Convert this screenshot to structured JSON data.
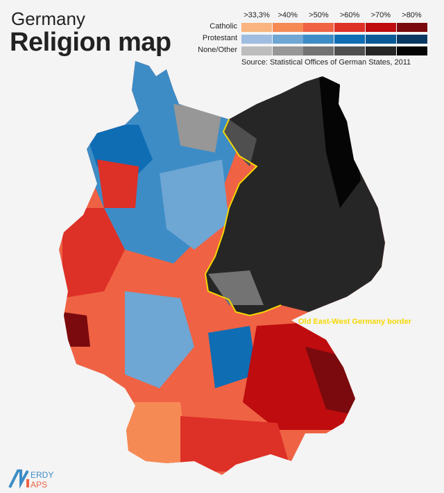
{
  "title": {
    "line1": "Germany",
    "line2": "Religion map"
  },
  "legend": {
    "thresholds": [
      ">33,3%",
      ">40%",
      ">50%",
      ">60%",
      ">70%",
      ">80%"
    ],
    "rows": [
      {
        "label": "Catholic",
        "colors": [
          "#f9b47f",
          "#f68a55",
          "#ef6244",
          "#dd3027",
          "#be0c0f",
          "#7a0a0d"
        ]
      },
      {
        "label": "Protestant",
        "colors": [
          "#9ebde0",
          "#6ea6d4",
          "#3d8cc6",
          "#0f6db4",
          "#0a5a98",
          "#0a3a64"
        ]
      },
      {
        "label": "None/Other",
        "colors": [
          "#bdbdbd",
          "#979797",
          "#737373",
          "#4f4f4f",
          "#262626",
          "#050505"
        ]
      }
    ],
    "source": "Source: Statistical Offices of German States, 2011"
  },
  "annotation": {
    "border_label": "Old East-West Germany border",
    "border_color": "#f5d800"
  },
  "logo": {
    "text": "NERDY MAPS"
  }
}
